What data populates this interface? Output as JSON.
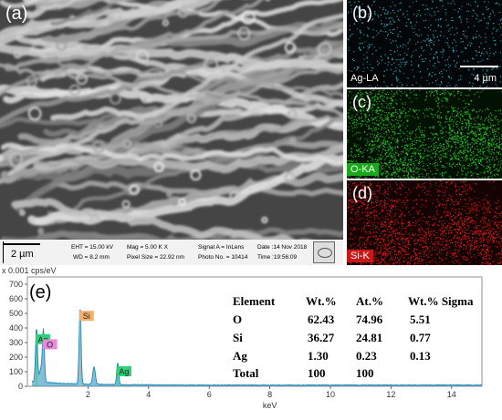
{
  "panels": {
    "a": {
      "letter": "(a)",
      "scalebar": "2 µm"
    },
    "b": {
      "letter": "(b)",
      "element_label": "Ag-LA",
      "scalebar": "4 µm"
    },
    "c": {
      "letter": "(c)",
      "element_label": "O-KA"
    },
    "d": {
      "letter": "(d)",
      "element_label": "Si-K"
    },
    "e": {
      "letter": "(e)"
    }
  },
  "sem_info": {
    "eht": "EHT = 15.00 kV",
    "wd": "WD = 8.2 mm",
    "mag": "Mag = 5.00 K X",
    "pixel_size": "Pixel Size = 22.92 nm",
    "signal": "Signal A = InLens",
    "photo_no": "Photo No. = 10414",
    "date": "Date :14 Nov 2018",
    "time": "Time :19:56:09"
  },
  "colors": {
    "ag_map": "#37c6d6",
    "o_map": "#2fd62f",
    "si_map": "#e02020",
    "ag_tag": "#2fd07a",
    "o_tag": "#e88ad8",
    "si_tag": "#f0b070",
    "spectrum": "#1a88b8"
  },
  "chart_data": {
    "type": "line",
    "y_unit_label": "x 0.001 cps/eV",
    "xlabel": "keV",
    "xlim": [
      0,
      15
    ],
    "ylim": [
      0,
      750
    ],
    "xticks": [
      2,
      4,
      6,
      8,
      10,
      12,
      14
    ],
    "yticks": [
      0,
      100,
      200,
      300,
      400,
      500,
      600,
      700
    ],
    "peaks": [
      {
        "label": "Ag",
        "energy": 0.3,
        "value": 370
      },
      {
        "label": "O",
        "energy": 0.53,
        "value": 335
      },
      {
        "label": "Si",
        "energy": 1.74,
        "value": 530
      },
      {
        "label": "Ag",
        "energy": 2.98,
        "value": 150
      }
    ],
    "table": {
      "headers": [
        "Element",
        "Wt.%",
        "At.%",
        "Wt.% Sigma"
      ],
      "rows": [
        [
          "O",
          "62.43",
          "74.96",
          "5.51"
        ],
        [
          "Si",
          "36.27",
          "24.81",
          "0.77"
        ],
        [
          "Ag",
          "1.30",
          "0.23",
          "0.13"
        ],
        [
          "Total",
          "100",
          "100",
          ""
        ]
      ]
    }
  }
}
